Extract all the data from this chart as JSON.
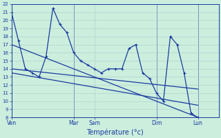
{
  "xlabel": "Température (°c)",
  "background_color": "#cceedd",
  "grid_color": "#aacccc",
  "line_color": "#1a3a9e",
  "ylim": [
    8,
    22
  ],
  "xlim": [
    0,
    30
  ],
  "yticks": [
    8,
    9,
    10,
    11,
    12,
    13,
    14,
    15,
    16,
    17,
    18,
    19,
    20,
    21,
    22
  ],
  "x_ticks_pos": [
    0,
    9,
    12,
    21,
    27
  ],
  "x_tick_labels": [
    "Ven",
    "Mar",
    "Sam",
    "Dim",
    "Lun"
  ],
  "vlines": [
    9,
    21,
    27
  ],
  "series1_x": [
    0,
    1,
    2,
    3,
    4,
    5,
    6,
    7,
    8,
    9,
    10,
    11,
    12,
    13,
    14,
    15,
    16,
    17,
    18,
    19,
    20,
    21,
    22,
    23,
    24,
    25,
    26,
    27
  ],
  "series1_y": [
    21,
    17.5,
    14,
    13.5,
    13,
    15.5,
    21.5,
    19.5,
    18.5,
    16,
    15,
    14.5,
    14,
    13.5,
    14,
    14,
    14,
    16.5,
    17,
    13.5,
    12.8,
    11,
    10,
    18,
    17,
    13.5,
    8.5,
    8
  ],
  "line2": [
    [
      0,
      17
    ],
    [
      27,
      8
    ]
  ],
  "line3": [
    [
      0,
      14
    ],
    [
      27,
      11.5
    ]
  ],
  "line4": [
    [
      0,
      13.5
    ],
    [
      27,
      9.5
    ]
  ]
}
